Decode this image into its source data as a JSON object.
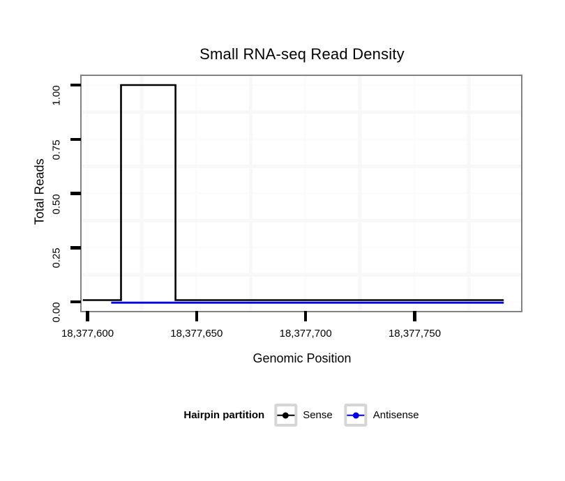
{
  "title": "Small RNA-seq Read Density",
  "axes": {
    "x": {
      "label": "Genomic Position",
      "tick_labels": [
        "18,377,600",
        "18,377,650",
        "18,377,700",
        "18,377,750"
      ],
      "tick_values": [
        18377600,
        18377650,
        18377700,
        18377750
      ],
      "minor_tick_values": [
        18377625,
        18377675,
        18377725,
        18377775
      ],
      "domain": [
        18377597.4,
        18377799.6
      ]
    },
    "y": {
      "label": "Total Reads",
      "tick_labels": [
        "1.00",
        "0.75",
        "0.50",
        "0.25",
        "0.00"
      ],
      "tick_values": [
        1.0,
        0.75,
        0.5,
        0.25,
        0.0
      ],
      "minor_tick_values": [
        0.875,
        0.625,
        0.375,
        0.125
      ],
      "domain": [
        -0.035,
        1.043
      ]
    }
  },
  "legend": {
    "title": "Hairpin partition",
    "items": [
      {
        "label": "Sense",
        "color": "#000000"
      },
      {
        "label": "Antisense",
        "color": "#0000EE"
      }
    ]
  },
  "colors": {
    "sense": "#000000",
    "antisense": "#0000EE",
    "panel_border": "#828282",
    "grid_major": "#FCFCFC",
    "grid_minor": "#F8F8F8",
    "legend_key_border": "#D6D6D6",
    "tick_marks": "#000000"
  },
  "chart_data": {
    "type": "line",
    "subtype": "step-density",
    "title": "Small RNA-seq Read Density",
    "xlabel": "Genomic Position",
    "ylabel": "Total Reads",
    "xlim": [
      18377597.4,
      18377799.6
    ],
    "ylim": [
      0,
      1
    ],
    "x_ticks": [
      18377600,
      18377650,
      18377700,
      18377750
    ],
    "y_ticks": [
      0,
      0.25,
      0.5,
      0.75,
      1
    ],
    "grid": "very faint minor gridlines, white panel, gray border",
    "legend_title": "Hairpin partition",
    "legend_position": "bottom-center",
    "series": [
      {
        "name": "Sense",
        "color": "#000000",
        "segments": [
          {
            "x_from": 18377598,
            "x_to": 18377615.5,
            "y": 0
          },
          {
            "x_from": 18377615.5,
            "x_to": 18377640.5,
            "y": 1
          },
          {
            "x_from": 18377640.5,
            "x_to": 18377791,
            "y": 0
          }
        ],
        "summary": "Density of 1 read over ~18,377,616-18,377,640 (~25 nt), 0 elsewhere"
      },
      {
        "name": "Antisense",
        "color": "#0000EE",
        "segments": [
          {
            "x_from": 18377611,
            "x_to": 18377791,
            "y": 0
          }
        ],
        "summary": "0 across the plotted window (flat blue line at y=0)"
      }
    ]
  }
}
